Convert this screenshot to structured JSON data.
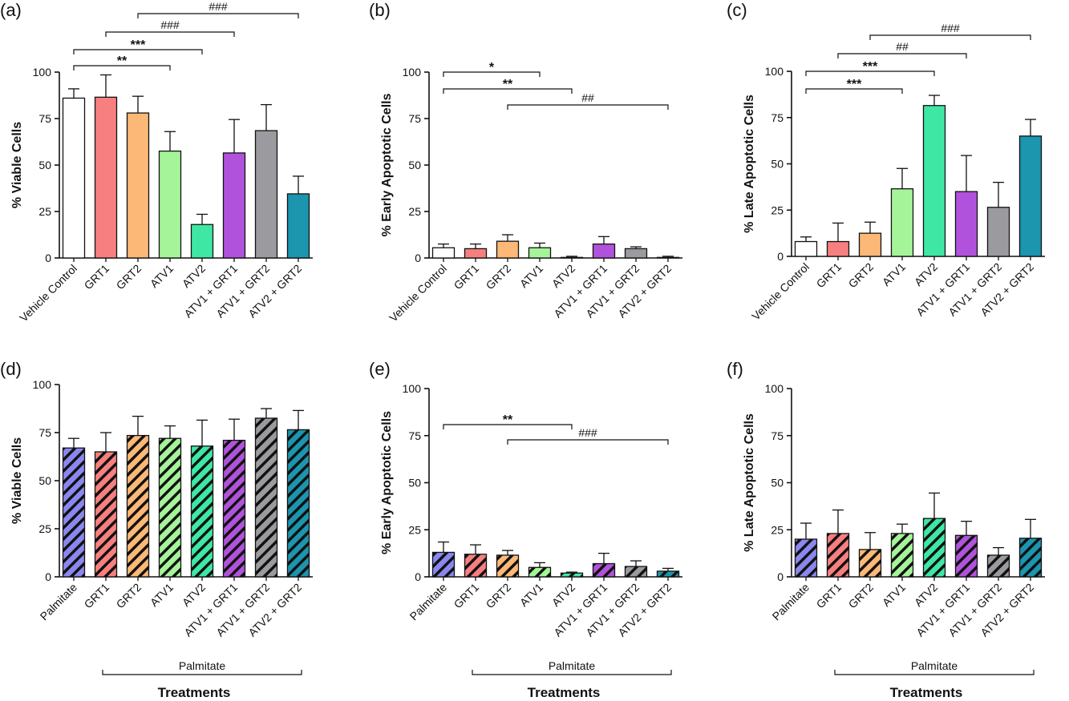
{
  "chart_data": [
    {
      "panel": "(a)",
      "type": "bar",
      "ylabel": "% Viable Cells",
      "ylim": [
        0,
        100
      ],
      "yticks": [
        0,
        25,
        50,
        75,
        100
      ],
      "categories": [
        "Vehicle Control",
        "GRT1",
        "GRT2",
        "ATV1",
        "ATV2",
        "ATV1 + GRT1",
        "ATV1 + GRT2",
        "ATV2 + GRT2"
      ],
      "values": [
        86,
        86.5,
        78,
        57.5,
        18,
        56.5,
        68.5,
        34.5
      ],
      "errors": [
        5,
        12,
        9,
        10.5,
        5.5,
        18,
        14,
        9.5
      ],
      "pattern": "solid",
      "brackets": [
        {
          "from": 0,
          "to": 3,
          "label": "**"
        },
        {
          "from": 0,
          "to": 4,
          "label": "***"
        },
        {
          "from": 1,
          "to": 5,
          "label": "###"
        },
        {
          "from": 2,
          "to": 7,
          "label": "###"
        }
      ]
    },
    {
      "panel": "(b)",
      "type": "bar",
      "ylabel": "% Early Apoptotic Cells",
      "ylim": [
        0,
        100
      ],
      "yticks": [
        0,
        25,
        50,
        75,
        100
      ],
      "categories": [
        "Vehicle Control",
        "GRT1",
        "GRT2",
        "ATV1",
        "ATV2",
        "ATV1 + GRT1",
        "ATV1 + GRT2",
        "ATV2 + GRT2"
      ],
      "values": [
        5.5,
        5,
        9,
        5.5,
        0.3,
        7.5,
        5,
        0.3
      ],
      "errors": [
        2,
        2.5,
        3.5,
        2.5,
        0.6,
        4,
        1,
        0.6
      ],
      "pattern": "solid",
      "brackets": [
        {
          "from": 0,
          "to": 4,
          "label": "**"
        },
        {
          "from": 0,
          "to": 3,
          "label": "*"
        },
        {
          "from": 2,
          "to": 7,
          "label": "##"
        }
      ]
    },
    {
      "panel": "(c)",
      "type": "bar",
      "ylabel": "% Late Apoptotic Cells",
      "ylim": [
        0,
        100
      ],
      "yticks": [
        0,
        25,
        50,
        75,
        100
      ],
      "categories": [
        "Vehicle Control",
        "GRT1",
        "GRT2",
        "ATV1",
        "ATV2",
        "ATV1 + GRT1",
        "ATV1 + GRT2",
        "ATV2 + GRT2"
      ],
      "values": [
        8,
        8,
        12.5,
        36.5,
        81.5,
        35,
        26.5,
        65
      ],
      "errors": [
        2.5,
        10,
        6,
        11,
        5.5,
        19.5,
        13.5,
        9
      ],
      "pattern": "solid",
      "brackets": [
        {
          "from": 0,
          "to": 3,
          "label": "***"
        },
        {
          "from": 0,
          "to": 4,
          "label": "***"
        },
        {
          "from": 1,
          "to": 5,
          "label": "##"
        },
        {
          "from": 2,
          "to": 7,
          "label": "###"
        }
      ]
    },
    {
      "panel": "(d)",
      "type": "bar",
      "ylabel": "% Viable Cells",
      "ylim": [
        0,
        100
      ],
      "yticks": [
        0,
        25,
        50,
        75,
        100
      ],
      "categories": [
        "Palmitate",
        "GRT1",
        "GRT2",
        "ATV1",
        "ATV2",
        "ATV1 + GRT1",
        "ATV1 + GRT2",
        "ATV2 + GRT2"
      ],
      "values": [
        67,
        65,
        73.5,
        72,
        68,
        71,
        82.5,
        76.5
      ],
      "errors": [
        5,
        10,
        10,
        6.5,
        13.5,
        11,
        5,
        10
      ],
      "pattern": "hatched",
      "brackets": [],
      "group_label": "Palmitate",
      "xlabel": "Treatments"
    },
    {
      "panel": "(e)",
      "type": "bar",
      "ylabel": "% Early Apoptotic Cells",
      "ylim": [
        0,
        100
      ],
      "yticks": [
        0,
        25,
        50,
        75,
        100
      ],
      "categories": [
        "Palmitate",
        "GRT1",
        "GRT2",
        "ATV1",
        "ATV2",
        "ATV1 + GRT1",
        "ATV1 + GRT2",
        "ATV2 + GRT2"
      ],
      "values": [
        13,
        12,
        11.5,
        5,
        2,
        7,
        5.5,
        3
      ],
      "errors": [
        5.5,
        5,
        2.5,
        2.5,
        0.5,
        5.5,
        3,
        1.5
      ],
      "pattern": "hatched",
      "brackets": [
        {
          "from": 0,
          "to": 4,
          "label": "**"
        },
        {
          "from": 2,
          "to": 7,
          "label": "###"
        }
      ],
      "group_label": "Palmitate",
      "xlabel": "Treatments"
    },
    {
      "panel": "(f)",
      "type": "bar",
      "ylabel": "% Late Apoptotic Cells",
      "ylim": [
        0,
        100
      ],
      "yticks": [
        0,
        25,
        50,
        75,
        100
      ],
      "categories": [
        "Palmitate",
        "GRT1",
        "GRT2",
        "ATV1",
        "ATV2",
        "ATV1 + GRT1",
        "ATV1 + GRT2",
        "ATV2 + GRT2"
      ],
      "values": [
        20,
        23,
        14.5,
        23,
        31,
        22,
        11.5,
        20.5
      ],
      "errors": [
        8.5,
        12.5,
        9,
        5,
        13.5,
        7.5,
        4,
        10
      ],
      "pattern": "hatched",
      "brackets": [],
      "group_label": "Palmitate",
      "xlabel": "Treatments"
    }
  ],
  "colors": [
    "#ffffff",
    "#f77f7f",
    "#fbb876",
    "#a6f49a",
    "#3ee8a4",
    "#b152dc",
    "#9b9a9f",
    "#1c95af"
  ],
  "hatch_colors": [
    "#8b87f0",
    "#f77f7f",
    "#fbb876",
    "#a6f49a",
    "#3ee8a4",
    "#b152dc",
    "#9b9a9f",
    "#1c95af"
  ]
}
